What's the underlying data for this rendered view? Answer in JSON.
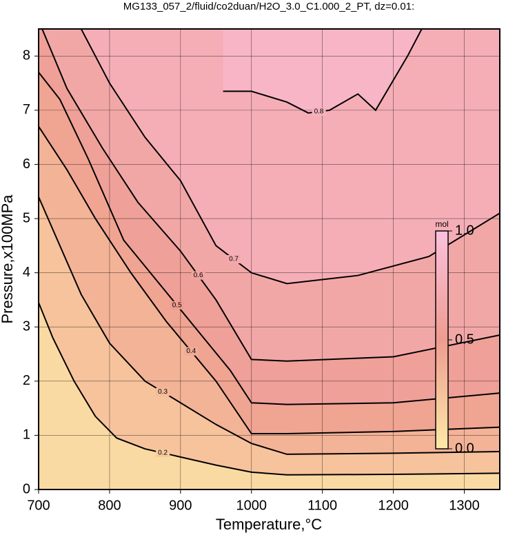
{
  "chart_data": {
    "type": "contour",
    "title": "MG133_057_2/fluid/co2duan/H2O_3.0_C1.000_2_PT, dz=0.01:",
    "x_label": "Temperature,°C",
    "y_label": "Pressure,x100MPa",
    "xlim": [
      700,
      1350
    ],
    "ylim": [
      0,
      8.5
    ],
    "xticks": [
      700,
      800,
      900,
      1000,
      1100,
      1200,
      1300
    ],
    "yticks": [
      0,
      1,
      2,
      3,
      4,
      5,
      6,
      7,
      8
    ],
    "grid": true,
    "colormap": [
      "#fde9a8",
      "#ee9c90",
      "#fbc0dc"
    ],
    "colorbar": {
      "label": "mol",
      "lim": [
        0,
        1
      ],
      "ticks": [
        {
          "value": 0,
          "label": "0.0"
        },
        0.5,
        {
          "value": 1,
          "label": "1.0"
        }
      ]
    },
    "contours": [
      {
        "level": 0.2,
        "x": [
          700,
          720,
          750,
          780,
          810,
          850,
          900,
          950,
          1000,
          1050,
          1200,
          1350
        ],
        "y": [
          3.45,
          2.8,
          2.0,
          1.35,
          0.95,
          0.75,
          0.6,
          0.45,
          0.32,
          0.27,
          0.28,
          0.3
        ]
      },
      {
        "level": 0.3,
        "x": [
          700,
          730,
          760,
          800,
          850,
          900,
          950,
          1000,
          1050,
          1200,
          1350
        ],
        "y": [
          5.4,
          4.5,
          3.6,
          2.7,
          2.0,
          1.6,
          1.2,
          0.85,
          0.65,
          0.67,
          0.7
        ]
      },
      {
        "level": 0.4,
        "x": [
          700,
          740,
          780,
          830,
          880,
          950,
          1000,
          1050,
          1200,
          1350
        ],
        "y": [
          6.7,
          5.9,
          5.0,
          4.0,
          3.1,
          2.0,
          1.03,
          1.03,
          1.07,
          1.15
        ]
      },
      {
        "level": 0.5,
        "x": [
          700,
          730,
          770,
          820,
          870,
          920,
          970,
          1000,
          1050,
          1200,
          1350
        ],
        "y": [
          7.7,
          7.2,
          6.1,
          4.6,
          3.8,
          3.0,
          2.2,
          1.6,
          1.57,
          1.6,
          1.78
        ]
      },
      {
        "level": 0.6,
        "x": [
          705,
          740,
          790,
          840,
          900,
          950,
          1000,
          1050,
          1200,
          1350
        ],
        "y": [
          8.5,
          7.4,
          6.3,
          5.3,
          4.4,
          3.5,
          2.4,
          2.37,
          2.45,
          2.85
        ]
      },
      {
        "level": 0.7,
        "x": [
          760,
          800,
          850,
          900,
          950,
          1000,
          1050,
          1150,
          1250,
          1350
        ],
        "y": [
          8.5,
          7.5,
          6.5,
          5.7,
          4.5,
          4.0,
          3.8,
          3.95,
          4.3,
          5.1
        ]
      },
      {
        "level": 0.8,
        "x": [
          960,
          1000,
          1050,
          1080,
          1110,
          1150,
          1175,
          1220,
          1240
        ],
        "y": [
          7.35,
          7.35,
          7.15,
          6.95,
          7.0,
          7.3,
          7.0,
          8.0,
          8.5
        ]
      }
    ]
  }
}
